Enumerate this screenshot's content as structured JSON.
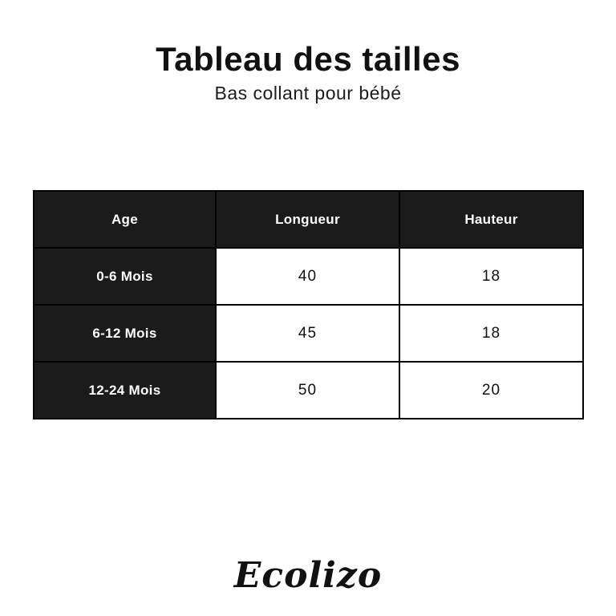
{
  "header": {
    "title": "Tableau des tailles",
    "subtitle": "Bas collant pour bébé"
  },
  "brand": {
    "logo_text": "Ecolizo"
  },
  "colors": {
    "table_dark_cell": "#1b1b1b",
    "table_border": "#000000",
    "page_background": "#ffffff",
    "text_dark": "#111111",
    "text_light": "#ffffff"
  },
  "chart_data": {
    "type": "table",
    "title": "Tableau des tailles",
    "subtitle": "Bas collant pour bébé",
    "columns": [
      "Age",
      "Longueur",
      "Hauteur"
    ],
    "rows": [
      [
        "0-6 Mois",
        "40",
        "18"
      ],
      [
        "6-12 Mois",
        "45",
        "18"
      ],
      [
        "12-24 Mois",
        "50",
        "20"
      ]
    ]
  }
}
